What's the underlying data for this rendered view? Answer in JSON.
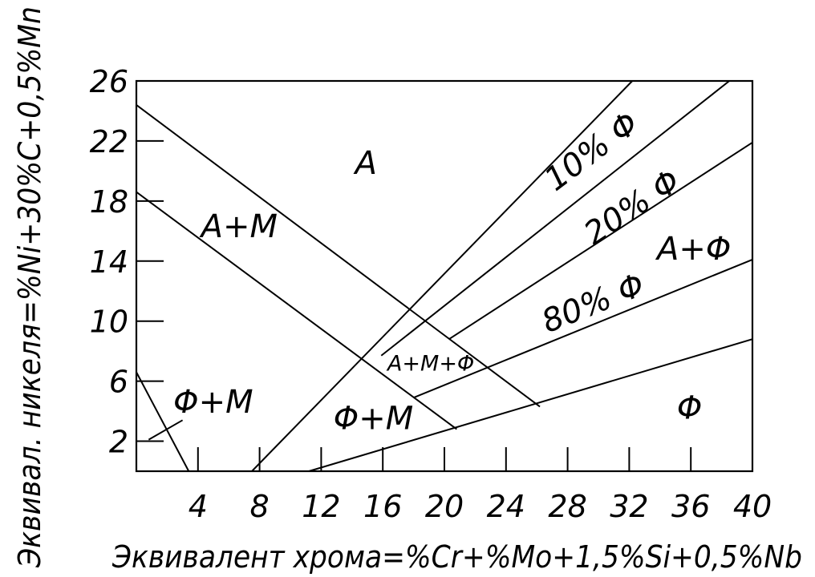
{
  "chart_data": {
    "type": "line",
    "xlabel": "Эквивалент хрома=%Cr+%Mo+1,5%Si+0,5%Nb",
    "ylabel": "Эквивал. никеля=%Ni+30%C+0,5%Mn",
    "xlim": [
      0,
      40
    ],
    "ylim": [
      0,
      26
    ],
    "x_ticks": [
      {
        "v": 4,
        "label": "4"
      },
      {
        "v": 8,
        "label": "8"
      },
      {
        "v": 12,
        "label": "12"
      },
      {
        "v": 16,
        "label": "16"
      },
      {
        "v": 20,
        "label": "20"
      },
      {
        "v": 24,
        "label": "24"
      },
      {
        "v": 28,
        "label": "28"
      },
      {
        "v": 32,
        "label": "32"
      },
      {
        "v": 36,
        "label": "36"
      },
      {
        "v": 40,
        "label": "40"
      }
    ],
    "y_ticks": [
      {
        "v": 2,
        "label": "2"
      },
      {
        "v": 6,
        "label": "6"
      },
      {
        "v": 10,
        "label": "10"
      },
      {
        "v": 14,
        "label": "14"
      },
      {
        "v": 18,
        "label": "18"
      },
      {
        "v": 22,
        "label": "22"
      },
      {
        "v": 26,
        "label": "26"
      }
    ],
    "boundary_lines": [
      {
        "id": "austenite-martensite-upper",
        "points": [
          [
            0,
            24.4
          ],
          [
            26.2,
            4.3
          ]
        ]
      },
      {
        "id": "austenite-martensite-lower",
        "points": [
          [
            0,
            18.6
          ],
          [
            20.8,
            2.8
          ]
        ]
      },
      {
        "id": "martensite-ferrite-corner",
        "points": [
          [
            0,
            6.6
          ],
          [
            3.4,
            0
          ]
        ]
      },
      {
        "id": "martensite-0-percent-ferrite",
        "points": [
          [
            7.5,
            0
          ],
          [
            32.2,
            26
          ]
        ]
      },
      {
        "id": "ferrite-10-percent",
        "points": [
          [
            15.9,
            7.7
          ],
          [
            38.5,
            26
          ]
        ]
      },
      {
        "id": "ferrite-20-percent",
        "points": [
          [
            20.3,
            8.8
          ],
          [
            40,
            21.9
          ]
        ]
      },
      {
        "id": "ferrite-80-percent",
        "points": [
          [
            18,
            4.9
          ],
          [
            40,
            14.1
          ]
        ]
      },
      {
        "id": "ferrite-100-percent",
        "points": [
          [
            11.2,
            0
          ],
          [
            40,
            8.8
          ]
        ]
      }
    ],
    "regions": [
      {
        "label": "A",
        "x": 14.2,
        "y": 19.8,
        "size": "large"
      },
      {
        "label": "A+M",
        "x": 4.2,
        "y": 15.6,
        "size": "large"
      },
      {
        "label": "10% Φ",
        "x": 27.2,
        "y": 18.6,
        "size": "large",
        "angle": -37
      },
      {
        "label": "20% Φ",
        "x": 29.7,
        "y": 15.0,
        "size": "large",
        "angle": -34
      },
      {
        "label": "A+Φ",
        "x": 33.8,
        "y": 14.1,
        "size": "large"
      },
      {
        "label": "80% Φ",
        "x": 26.7,
        "y": 9.2,
        "size": "large",
        "angle": -22
      },
      {
        "label": "A+M+Φ",
        "x": 16.3,
        "y": 6.7,
        "size": "small"
      },
      {
        "label": "Φ+M",
        "x": 2.4,
        "y": 3.9,
        "size": "large"
      },
      {
        "label": "Φ+M",
        "x": 12.8,
        "y": 2.8,
        "size": "large"
      },
      {
        "label": "Φ",
        "x": 35.1,
        "y": 3.5,
        "size": "large"
      }
    ],
    "leader": {
      "points": [
        [
          0.8,
          2.1
        ],
        [
          3.0,
          3.4
        ]
      ]
    },
    "grid": false,
    "legend": "none"
  }
}
